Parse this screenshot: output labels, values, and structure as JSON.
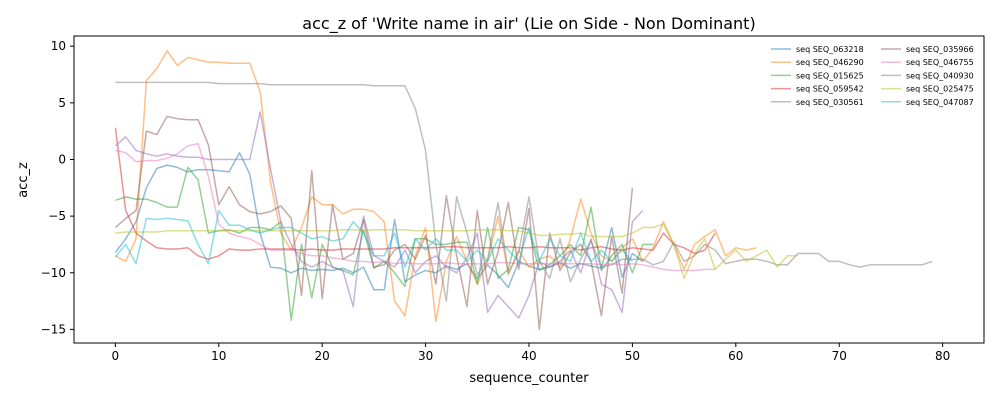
{
  "chart_data": {
    "type": "line",
    "title": "acc_z of 'Write name in air' (Lie on Side - Non Dominant)",
    "xlabel": "sequence_counter",
    "ylabel": "acc_z",
    "xlim": [
      -4,
      84
    ],
    "ylim": [
      -16.2,
      10.9
    ],
    "xticks": [
      0,
      10,
      20,
      30,
      40,
      50,
      60,
      70,
      80
    ],
    "yticks": [
      -15,
      -10,
      -5,
      0,
      5,
      10
    ],
    "grid": false,
    "legend_position": "top-right",
    "legend_columns": 2,
    "series": [
      {
        "name": "seq SEQ_063218",
        "color": "#1f77b4",
        "values": [
          -8.2,
          -7,
          -5.5,
          -2.5,
          -0.8,
          -0.5,
          -0.7,
          -1.1,
          -0.9,
          -0.9,
          -1,
          -1.1,
          0.6,
          -1.3,
          -6.5,
          -9.5,
          -9.6,
          -10,
          -9.6,
          -9.8,
          -9.7,
          -9.8,
          -9.6,
          -10,
          -9.5,
          -11.5,
          -11.5,
          -5.3,
          -10.8,
          -10.2,
          -9.8,
          -10,
          -9.4,
          -9.7,
          -9.2,
          -10.5,
          -9.3,
          -10.2,
          -11.3,
          -9,
          -9.4,
          -9.7,
          -9.5,
          -9.1,
          -9.6,
          -9.2,
          -9.4,
          -9.6,
          -6,
          -10.4,
          -8.3,
          -9
        ]
      },
      {
        "name": "seq SEQ_046290",
        "color": "#ff7f0e",
        "values": [
          -8.5,
          -9,
          -7,
          7,
          8,
          9.6,
          8.3,
          9,
          8.8,
          8.6,
          8.6,
          8.5,
          8.5,
          8.5,
          6,
          -2,
          -6.5,
          -8,
          -6,
          -3.3,
          -4,
          -4,
          -4.8,
          -4.4,
          -4.4,
          -4.6,
          -5.5,
          -12.5,
          -13.8,
          -8.5,
          -6,
          -14.3,
          -9,
          -6.8,
          -9,
          -11,
          -9,
          -5,
          -10.2,
          -8,
          -9.5,
          -8.8,
          -8.5,
          -9.5,
          -7,
          -3.5,
          -6.5,
          -8.5,
          -9,
          -7.8,
          -7,
          -9,
          -7.8,
          -5.5,
          -7.5,
          -9.7,
          -7.5,
          -6.8,
          -6.2,
          -8.5,
          -7.8,
          -8,
          -7.8
        ]
      },
      {
        "name": "seq SEQ_015625",
        "color": "#2ca02c",
        "values": [
          -3.6,
          -3.3,
          -3.5,
          -3.5,
          -3.8,
          -4.2,
          -4.2,
          -0.7,
          -1.8,
          -6.5,
          -6.3,
          -6.2,
          -6.5,
          -6,
          -6,
          -6.2,
          -5.5,
          -14.2,
          -7.5,
          -12.2,
          -7.5,
          -9.5,
          -9.8,
          -10.2,
          -6.2,
          -9.6,
          -9,
          -10,
          -11.2,
          -7,
          -7,
          -7.5,
          -7.5,
          -7.3,
          -7.3,
          -11,
          -6,
          -10.5,
          -9.7,
          -6,
          -6.2,
          -9.8,
          -9.3,
          -8.5,
          -7.5,
          -8.5,
          -4.2,
          -9.8,
          -8.5,
          -7.5,
          -10,
          -7.5,
          -7.5
        ]
      },
      {
        "name": "seq SEQ_059542",
        "color": "#d62728",
        "values": [
          2.8,
          -4.5,
          -6.5,
          -7.2,
          -7.8,
          -7.9,
          -7.9,
          -7.8,
          -8.5,
          -8.8,
          -8.5,
          -7.9,
          -8,
          -8,
          -7.9,
          -7.9,
          -7.9,
          -7.9,
          -8,
          -7.9,
          -8,
          -8,
          -7.9,
          -7.9,
          -7.9,
          -7.9,
          -7.9,
          -7.8,
          -7.8,
          -7.8,
          -7.8,
          -7.8,
          -7.7,
          -7.7,
          -7.8,
          -7.8,
          -7.8,
          -7.8,
          -7.7,
          -7.8,
          -7.8,
          -7.7,
          -7.8,
          -7.8,
          -7.8,
          -8,
          -7.8,
          -7.7,
          -7.9,
          -8,
          -7.8,
          -7.9,
          -8,
          -6.5,
          -7.5,
          -7.8,
          -8.3,
          -8,
          -6.5
        ]
      },
      {
        "name": "seq SEQ_030561",
        "color": "#9467bd",
        "values": [
          1.2,
          2,
          0.8,
          0.5,
          0.3,
          0.5,
          0.3,
          0.2,
          0.2,
          0,
          0,
          0,
          0,
          0,
          4.2,
          -0.8,
          -5.5,
          -7.5,
          -9,
          -9.5,
          -9,
          -9.5,
          -9.8,
          -13,
          -5,
          -8.5,
          -9,
          -9.5,
          -8,
          -10,
          -9,
          -8.5,
          -9.5,
          -10,
          -8.7,
          -6.5,
          -13.5,
          -12,
          -13,
          -14,
          -12,
          -9,
          -9.5,
          -9,
          -8,
          -10,
          -7,
          -11,
          -11.5,
          -13.5,
          -5.5,
          -4.5
        ]
      },
      {
        "name": "seq SEQ_035966",
        "color": "#8c564b",
        "values": [
          -6,
          -5.2,
          -4.5,
          2.5,
          2.2,
          3.8,
          3.6,
          3.5,
          3.5,
          1.3,
          -4,
          -2.4,
          -4,
          -4.6,
          -4.8,
          -4.6,
          -4.1,
          -5.2,
          -12,
          -1,
          -12.3,
          -4,
          -8.8,
          -8.3,
          -5.3,
          -9.5,
          -9.3,
          -8,
          -7.5,
          -8.8,
          -6.7,
          -11,
          -3.2,
          -8.5,
          -13,
          -4.5,
          -11,
          -8.2,
          -3.8,
          -9.7,
          -4.3,
          -15,
          -6.5,
          -9.8,
          -8.2,
          -7.5,
          -9,
          -13.8,
          -6.8,
          -11.8,
          -2.5
        ]
      },
      {
        "name": "seq SEQ_046755",
        "color": "#e377c2",
        "values": [
          0.8,
          0.6,
          -0.2,
          -0.1,
          -0.1,
          0.1,
          0.5,
          1.2,
          1.4,
          -1.5,
          -5.7,
          -6.5,
          -6.8,
          -7,
          -7.5,
          -8,
          -8,
          -8,
          -8.3,
          -8.5,
          -8.5,
          -8.7,
          -8.8,
          -9,
          -9,
          -9.1,
          -9,
          -9.2,
          -9.1,
          -9.2,
          -9.2,
          -9.2,
          -9.1,
          -9.2,
          -9.2,
          -9.2,
          -9.2,
          -9.1,
          -9.1,
          -9.2,
          -9.2,
          -9.2,
          -9.2,
          -9.2,
          -9.2,
          -9.2,
          -9.2,
          -9.3,
          -9.2,
          -9.3,
          -9.2,
          -9.3,
          -9.5,
          -9.7,
          -9.8,
          -9.8,
          -9.8,
          -9.7,
          -9.7
        ]
      },
      {
        "name": "seq SEQ_040930",
        "color": "#7f7f7f",
        "values": [
          6.8,
          6.8,
          6.8,
          6.8,
          6.8,
          6.8,
          6.8,
          6.8,
          6.8,
          6.8,
          6.7,
          6.7,
          6.7,
          6.7,
          6.7,
          6.6,
          6.6,
          6.6,
          6.6,
          6.6,
          6.6,
          6.6,
          6.6,
          6.6,
          6.6,
          6.5,
          6.5,
          6.5,
          6.5,
          4.5,
          0.8,
          -7.5,
          -12.5,
          -3.3,
          -6.5,
          -10.2,
          -8.8,
          -3.8,
          -10,
          -8.2,
          -3.3,
          -9,
          -10.5,
          -7,
          -10.8,
          -8.8,
          -7.2,
          -9.5,
          -9.3,
          -8.8,
          -8.8,
          -8.8,
          -9.3,
          -9,
          -7.3,
          -9,
          -8.5,
          -7.5,
          -8,
          -9.2,
          -9,
          -8.8,
          -8.8,
          -9,
          -9.3,
          -9.3,
          -8.3,
          -8.3,
          -8.3,
          -9,
          -9,
          -9.3,
          -9.5,
          -9.3,
          -9.3,
          -9.3,
          -9.3,
          -9.3,
          -9.3,
          -9
        ]
      },
      {
        "name": "seq SEQ_025475",
        "color": "#bcbd22",
        "values": [
          -6.5,
          -6.4,
          -6.4,
          -6.4,
          -6.4,
          -6.3,
          -6.3,
          -6.3,
          -6.3,
          -6.3,
          -6.3,
          -6.3,
          -6.3,
          -6.3,
          -6.3,
          -6.3,
          -6.3,
          -6.3,
          -6.3,
          -6.3,
          -6.3,
          -6.3,
          -6.2,
          -6.2,
          -6.3,
          -6.2,
          -6.2,
          -6.2,
          -6.2,
          -6.3,
          -6.3,
          -6.3,
          -6.3,
          -6.3,
          -6.3,
          -6.2,
          -6.2,
          -6.2,
          -6.3,
          -6.3,
          -6.5,
          -6.7,
          -6.7,
          -6.6,
          -6.6,
          -6.5,
          -6.8,
          -6.8,
          -6.8,
          -6.8,
          -6.5,
          -6,
          -6,
          -5.7,
          -7.5,
          -10.5,
          -8.3,
          -7,
          -9.7,
          -8.8,
          -8,
          -9,
          -8.5,
          -8,
          -9.5,
          -8.5,
          -8.5
        ]
      },
      {
        "name": "seq SEQ_047087",
        "color": "#17becf",
        "values": [
          -8.6,
          -7.5,
          -9.2,
          -5.2,
          -5.3,
          -5.2,
          -5.3,
          -5.4,
          -7.5,
          -9.2,
          -4.5,
          -5.8,
          -5.8,
          -6.2,
          -6.5,
          -6.2,
          -6,
          -6,
          -6.5,
          -7,
          -6.8,
          -7.2,
          -7,
          -5.5,
          -6.5,
          -8.5,
          -8.5,
          -6.5,
          -9.5,
          -7,
          -8,
          -7,
          -8,
          -8,
          -9,
          -8,
          -9,
          -7,
          -8,
          -9,
          -6,
          -9,
          -7,
          -8.5,
          -9,
          -6.5,
          -9,
          -8,
          -9,
          -8,
          -9
        ]
      }
    ]
  }
}
